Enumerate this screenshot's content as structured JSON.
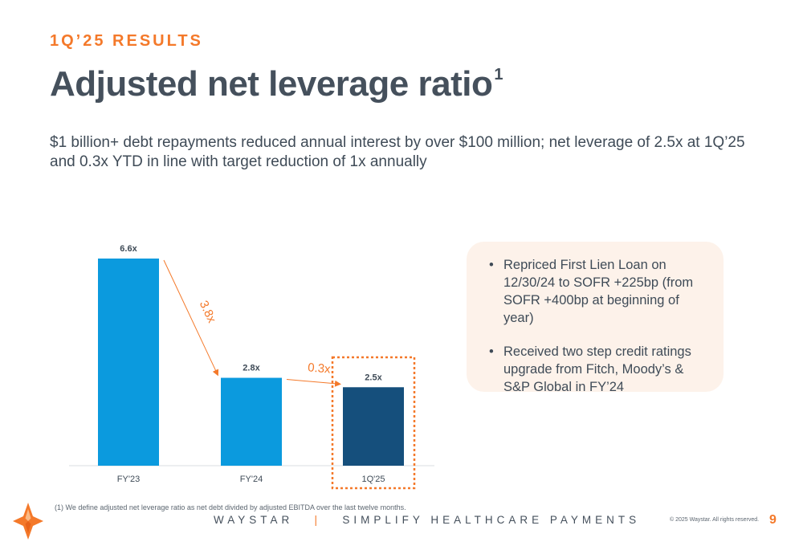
{
  "header": {
    "kicker": "1Q’25 RESULTS",
    "title": "Adjusted net leverage ratio",
    "title_superscript": "1",
    "subtitle": "$1 billion+ debt repayments reduced annual interest by over $100 million; net leverage of 2.5x at 1Q’25 and 0.3x YTD in line with target reduction of 1x annually"
  },
  "chart_data": {
    "type": "bar",
    "categories": [
      "FY'23",
      "FY'24",
      "1Q'25"
    ],
    "values": [
      6.6,
      2.8,
      2.5
    ],
    "value_labels": [
      "6.6x",
      "2.8x",
      "2.5x"
    ],
    "colors": [
      "#0b9ade",
      "#0b9ade",
      "#154f7c"
    ],
    "highlighted_category": "1Q'25",
    "ylim": [
      0,
      6.6
    ],
    "annotations": [
      {
        "from": "FY'23",
        "to": "FY'24",
        "text": "3.8x",
        "color": "#f4792a"
      },
      {
        "from": "FY'24",
        "to": "1Q'25",
        "text": "0.3x",
        "color": "#f4792a"
      }
    ],
    "grid": false
  },
  "callout": {
    "bullets": [
      "Repriced First Lien Loan on 12/30/24 to SOFR +225bp (from SOFR +400bp at beginning of year)",
      "Received two step credit ratings upgrade from Fitch, Moody’s & S&P Global in FY’24"
    ]
  },
  "footer": {
    "footnote": "(1)   We define adjusted net leverage ratio as net debt divided by adjusted EBITDA over the last twelve months.",
    "brand": "WAYSTAR",
    "separator": "|",
    "tagline": "SIMPLIFY HEALTHCARE PAYMENTS",
    "copyright": "© 2025 Waystar. All rights reserved.",
    "page_number": "9"
  },
  "colors": {
    "accent": "#f4792a",
    "bar_light": "#0b9ade",
    "bar_dark": "#154f7c",
    "callout_bg": "#fdf2ea"
  },
  "icons": {
    "logo": "waystar-star-logo"
  }
}
